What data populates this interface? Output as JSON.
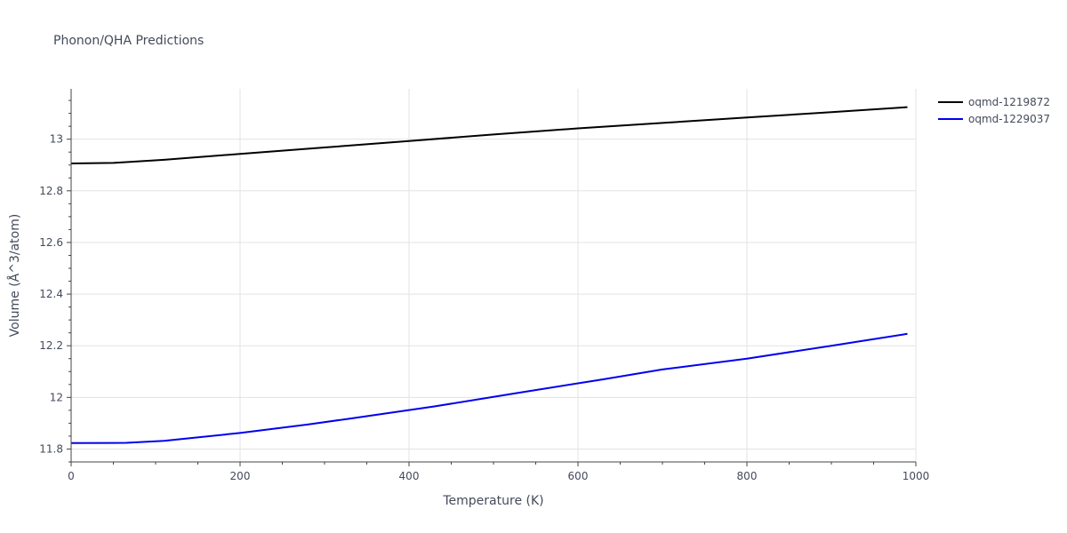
{
  "chart_data": {
    "type": "line",
    "title": "Phonon/QHA Predictions",
    "xlabel": "Temperature (K)",
    "ylabel": "Volume (Å^3/atom)",
    "xlim": [
      0,
      1000
    ],
    "ylim": [
      11.75,
      13.195
    ],
    "xticks": [
      0,
      200,
      400,
      600,
      800,
      1000
    ],
    "yticks": [
      11.8,
      12,
      12.2,
      12.4,
      12.6,
      12.8,
      13
    ],
    "ytick_labels": [
      "11.8",
      "12",
      "12.2",
      "12.4",
      "12.6",
      "12.8",
      "13"
    ],
    "grid": true,
    "legend_position": "top-right",
    "series": [
      {
        "name": "oqmd-1219872",
        "color": "#000000",
        "x": [
          0,
          50,
          110,
          200,
          300,
          400,
          500,
          600,
          700,
          800,
          900,
          990
        ],
        "y": [
          12.906,
          12.908,
          12.92,
          12.943,
          12.968,
          12.993,
          13.018,
          13.042,
          13.063,
          13.084,
          13.105,
          13.124
        ]
      },
      {
        "name": "oqmd-1229037",
        "color": "#0000ee",
        "x": [
          0,
          65,
          110,
          200,
          280,
          330,
          430,
          530,
          630,
          700,
          800,
          900,
          990
        ],
        "y": [
          11.823,
          11.824,
          11.832,
          11.862,
          11.895,
          11.918,
          11.965,
          12.018,
          12.07,
          12.108,
          12.15,
          12.2,
          12.246
        ]
      }
    ]
  }
}
